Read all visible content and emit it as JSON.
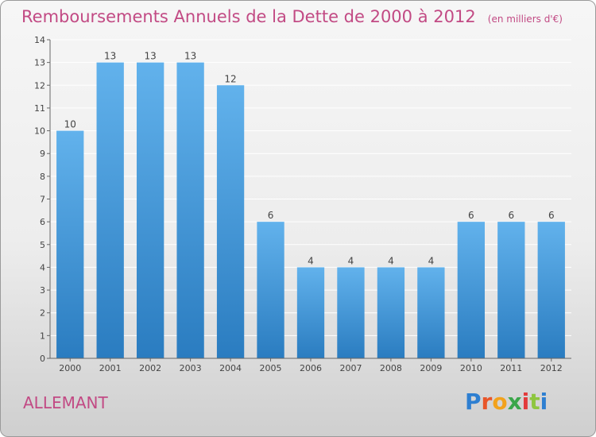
{
  "title": "Remboursements Annuels de la Dette de 2000 à 2012",
  "unit": "(en milliers d'€)",
  "commune": "ALLEMANT",
  "logo": "Proxiti",
  "colors": {
    "title": "#c24a84",
    "bar_top": "#62b2ec",
    "bar_bottom": "#2a7cc0",
    "grid": "#ffffff"
  },
  "chart_data": {
    "type": "bar",
    "title": "Remboursements Annuels de la Dette de 2000 à 2012",
    "categories": [
      "2000",
      "2001",
      "2002",
      "2003",
      "2004",
      "2005",
      "2006",
      "2007",
      "2008",
      "2009",
      "2010",
      "2011",
      "2012"
    ],
    "values": [
      10,
      13,
      13,
      13,
      12,
      6,
      4,
      4,
      4,
      4,
      6,
      6,
      6
    ],
    "ylim": [
      0,
      14
    ],
    "yticks": [
      0,
      1,
      2,
      3,
      4,
      5,
      6,
      7,
      8,
      9,
      10,
      11,
      12,
      13,
      14
    ],
    "ytick_labels": [
      "0",
      "1",
      "2",
      "3",
      "4",
      "5",
      "6",
      "7",
      "8",
      "9",
      "10",
      "11",
      "12",
      "13",
      "14"
    ],
    "grid": true,
    "data_labels": true
  }
}
